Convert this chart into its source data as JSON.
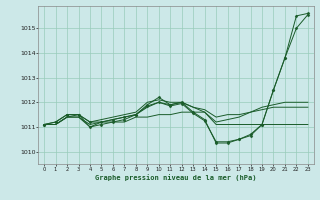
{
  "xlabel": "Graphe pression niveau de la mer (hPa)",
  "bg_color": "#cce8e8",
  "grid_color": "#99ccbb",
  "line_color": "#1a5c2a",
  "xlim": [
    -0.5,
    23.5
  ],
  "ylim": [
    1009.5,
    1015.9
  ],
  "yticks": [
    1010,
    1011,
    1012,
    1013,
    1014,
    1015
  ],
  "xticks": [
    0,
    1,
    2,
    3,
    4,
    5,
    6,
    7,
    8,
    9,
    10,
    11,
    12,
    13,
    14,
    15,
    16,
    17,
    18,
    19,
    20,
    21,
    22,
    23
  ],
  "series": [
    {
      "x": [
        0,
        1,
        2,
        3,
        4,
        5,
        6,
        7,
        8,
        9,
        10,
        11,
        12,
        13,
        14,
        15,
        16,
        17,
        18,
        19,
        20,
        21,
        22,
        23
      ],
      "y": [
        1011.1,
        1011.1,
        1011.4,
        1011.4,
        1011.0,
        1011.2,
        1011.2,
        1011.2,
        1011.4,
        1011.4,
        1011.5,
        1011.5,
        1011.6,
        1011.6,
        1011.6,
        1011.1,
        1011.1,
        1011.1,
        1011.1,
        1011.1,
        1011.1,
        1011.1,
        1011.1,
        1011.1
      ],
      "marker": false
    },
    {
      "x": [
        0,
        1,
        2,
        3,
        4,
        5,
        6,
        7,
        8,
        9,
        10,
        11,
        12,
        13,
        14,
        15,
        16,
        17,
        18,
        19,
        20,
        21,
        22,
        23
      ],
      "y": [
        1011.1,
        1011.1,
        1011.4,
        1011.4,
        1011.1,
        1011.2,
        1011.3,
        1011.4,
        1011.5,
        1011.8,
        1012.0,
        1011.9,
        1012.0,
        1011.8,
        1011.7,
        1011.4,
        1011.5,
        1011.5,
        1011.6,
        1011.7,
        1011.8,
        1011.8,
        1011.8,
        1011.8
      ],
      "marker": false
    },
    {
      "x": [
        0,
        1,
        2,
        3,
        4,
        5,
        6,
        7,
        8,
        9,
        10,
        11,
        12,
        13,
        14,
        15,
        16,
        17,
        18,
        19,
        20,
        21,
        22,
        23
      ],
      "y": [
        1011.1,
        1011.1,
        1011.4,
        1011.5,
        1011.2,
        1011.3,
        1011.4,
        1011.5,
        1011.6,
        1012.0,
        1012.1,
        1012.0,
        1012.0,
        1011.8,
        1011.6,
        1011.2,
        1011.3,
        1011.4,
        1011.6,
        1011.8,
        1011.9,
        1012.0,
        1012.0,
        1012.0
      ],
      "marker": false
    },
    {
      "x": [
        0,
        1,
        2,
        3,
        4,
        5,
        6,
        7,
        8,
        9,
        10,
        11,
        12,
        13,
        14,
        15,
        16,
        17,
        18,
        19,
        20,
        21,
        22,
        23
      ],
      "y": [
        1011.1,
        1011.2,
        1011.5,
        1011.5,
        1011.2,
        1011.2,
        1011.3,
        1011.4,
        1011.5,
        1011.9,
        1012.2,
        1011.9,
        1012.0,
        1011.6,
        1011.3,
        1010.35,
        1010.35,
        1010.5,
        1010.7,
        1011.1,
        1012.5,
        1013.8,
        1015.5,
        1015.6
      ],
      "marker": true
    },
    {
      "x": [
        0,
        1,
        2,
        3,
        4,
        5,
        6,
        7,
        8,
        9,
        10,
        11,
        12,
        13,
        14,
        15,
        16,
        17,
        18,
        19,
        20,
        21,
        22,
        23
      ],
      "y": [
        1011.1,
        1011.2,
        1011.5,
        1011.5,
        1011.0,
        1011.1,
        1011.2,
        1011.3,
        1011.5,
        1011.85,
        1012.0,
        1011.85,
        1011.95,
        1011.55,
        1011.25,
        1010.4,
        1010.4,
        1010.5,
        1010.65,
        1011.1,
        1012.5,
        1013.8,
        1015.0,
        1015.55
      ],
      "marker": true
    }
  ]
}
